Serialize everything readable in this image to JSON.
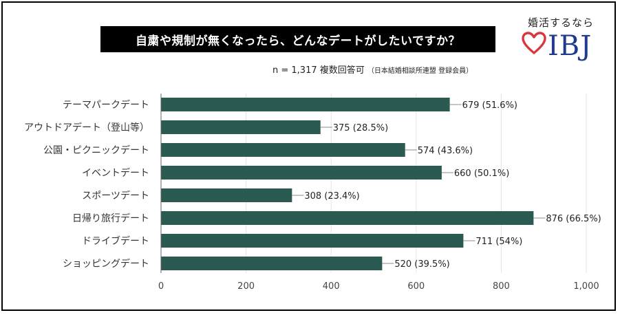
{
  "header": {
    "title": "自粛や規制が無くなったら、どんなデートがしたいですか？",
    "sample": "n = 1,317",
    "answer_type": "複数回答可",
    "source": "（日本結婚相談所連盟 登録会員）"
  },
  "logo": {
    "tagline": "婚活するなら",
    "text": "IBJ"
  },
  "colors": {
    "bar": "#2b5a53",
    "grid": "#e4e4e4",
    "leader": "#888888",
    "logo_heart": "#d9363e",
    "logo_text": "#1f3a8c"
  },
  "chart_data": {
    "type": "bar",
    "orientation": "horizontal",
    "categories": [
      "テーマパークデート",
      "アウトドアデート（登山等）",
      "公園・ピクニックデート",
      "イベントデート",
      "スポーツデート",
      "日帰り旅行デート",
      "ドライブデート",
      "ショッピングデート"
    ],
    "values": [
      679,
      375,
      574,
      660,
      308,
      876,
      711,
      520
    ],
    "data_labels": [
      "679 (51.6%)",
      "375 (28.5%)",
      "574 (43.6%)",
      "660 (50.1%)",
      "308 (23.4%)",
      "876 (66.5%)",
      "711 (54%)",
      "520 (39.5%)"
    ],
    "xlim": [
      0,
      1000
    ],
    "xticks": [
      0,
      200,
      400,
      600,
      800,
      1000
    ],
    "xtick_labels": [
      "0",
      "200",
      "400",
      "600",
      "800",
      "1,000"
    ],
    "grid": true,
    "legend": "none"
  }
}
